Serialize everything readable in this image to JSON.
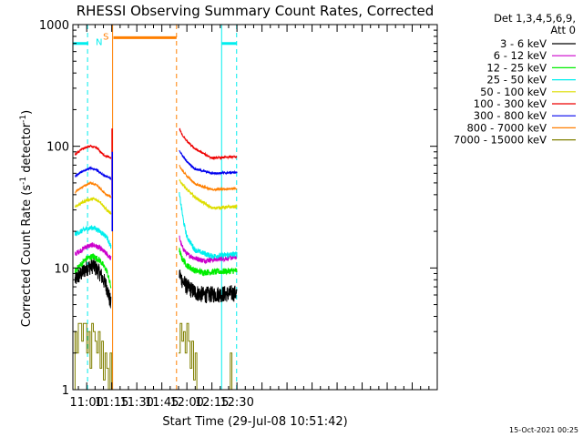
{
  "chart_data": {
    "type": "line",
    "title": "RHESSI Observing Summary Count Rates, Corrected",
    "xlabel": "Start Time (29-Jul-08 10:51:42)",
    "ylabel_main": "Corrected Count Rate (s",
    "ylabel_sup1": "-1",
    "ylabel_mid": " detector",
    "ylabel_sup2": "-1",
    "ylabel_end": ")",
    "yscale": "log",
    "ylim": [
      1,
      1000
    ],
    "xlim_min": [
      651.7,
      870
    ],
    "y_ticks": [
      {
        "v": 1,
        "label": "1"
      },
      {
        "v": 10,
        "label": "10"
      },
      {
        "v": 100,
        "label": "100"
      },
      {
        "v": 1000,
        "label": "1000"
      }
    ],
    "x_ticks": [
      {
        "v": 660,
        "label": "11:00"
      },
      {
        "v": 675,
        "label": "11:15"
      },
      {
        "v": 690,
        "label": "11:30"
      },
      {
        "v": 705,
        "label": "11:45"
      },
      {
        "v": 720,
        "label": "12:00"
      },
      {
        "v": 735,
        "label": "12:15"
      },
      {
        "v": 750,
        "label": "12:30"
      }
    ],
    "legend": {
      "header1": "Det 1,3,4,5,6,9,",
      "header2": "Att 0",
      "position": "right"
    },
    "series": [
      {
        "name": "3 - 6 keV",
        "color": "#000000",
        "noise": 0.16,
        "seg1": [
          [
            653,
            8
          ],
          [
            660,
            10
          ],
          [
            664,
            10.5
          ],
          [
            668,
            9
          ],
          [
            672,
            7
          ],
          [
            674.5,
            5
          ]
        ],
        "seg2": [
          [
            715.5,
            9
          ],
          [
            717,
            8
          ],
          [
            720,
            7
          ],
          [
            725,
            6.3
          ],
          [
            730,
            6
          ],
          [
            750,
            6.2
          ]
        ]
      },
      {
        "name": "6 - 12 keV",
        "color": "#cc00cc",
        "noise": 0.05,
        "seg1": [
          [
            653,
            13
          ],
          [
            660,
            15
          ],
          [
            664,
            15.5
          ],
          [
            668,
            14.5
          ],
          [
            672,
            13
          ],
          [
            674.5,
            12
          ]
        ],
        "seg2": [
          [
            715.5,
            18
          ],
          [
            717,
            15
          ],
          [
            720,
            13
          ],
          [
            725,
            12
          ],
          [
            730,
            11.5
          ],
          [
            750,
            12.3
          ]
        ]
      },
      {
        "name": "12 - 25 keV",
        "color": "#00ee00",
        "noise": 0.06,
        "seg1": [
          [
            653,
            9.5
          ],
          [
            660,
            12
          ],
          [
            664,
            12.5
          ],
          [
            668,
            11.5
          ],
          [
            672,
            9.5
          ],
          [
            674.5,
            7
          ]
        ],
        "seg2": [
          [
            715.5,
            14
          ],
          [
            717,
            12
          ],
          [
            720,
            10.5
          ],
          [
            725,
            9.5
          ],
          [
            730,
            9.2
          ],
          [
            750,
            9.5
          ]
        ]
      },
      {
        "name": "25 - 50 keV",
        "color": "#00eeee",
        "noise": 0.05,
        "seg1": [
          [
            653,
            19
          ],
          [
            660,
            21
          ],
          [
            664,
            21.5
          ],
          [
            668,
            20
          ],
          [
            672,
            18
          ],
          [
            674.5,
            15
          ]
        ],
        "seg2": [
          [
            715.5,
            40
          ],
          [
            716.5,
            33
          ],
          [
            718,
            24
          ],
          [
            720,
            18
          ],
          [
            725,
            14
          ],
          [
            735,
            12.5
          ],
          [
            750,
            13
          ]
        ]
      },
      {
        "name": "50 - 100 keV",
        "color": "#dddd00",
        "noise": 0.03,
        "seg1": [
          [
            653,
            32
          ],
          [
            660,
            36
          ],
          [
            664,
            37
          ],
          [
            668,
            35
          ],
          [
            672,
            30
          ],
          [
            674.5,
            28
          ]
        ],
        "seg2": [
          [
            715.5,
            52
          ],
          [
            718,
            48
          ],
          [
            720,
            44
          ],
          [
            725,
            38
          ],
          [
            735,
            31
          ],
          [
            750,
            32
          ]
        ]
      },
      {
        "name": "100 - 300 keV",
        "color": "#ee0000",
        "noise": 0.02,
        "seg1": [
          [
            653,
            85
          ],
          [
            657,
            95
          ],
          [
            662,
            100
          ],
          [
            666,
            97
          ],
          [
            670,
            85
          ],
          [
            674.5,
            80
          ]
        ],
        "seg2": [
          [
            715.5,
            140
          ],
          [
            717,
            125
          ],
          [
            720,
            110
          ],
          [
            725,
            95
          ],
          [
            735,
            80
          ],
          [
            750,
            82
          ]
        ]
      },
      {
        "name": "300 - 800 keV",
        "color": "#0000ee",
        "noise": 0.02,
        "seg1": [
          [
            653,
            57
          ],
          [
            657,
            62
          ],
          [
            662,
            66
          ],
          [
            666,
            64
          ],
          [
            670,
            58
          ],
          [
            674.5,
            54
          ]
        ],
        "seg2": [
          [
            715.5,
            93
          ],
          [
            717,
            85
          ],
          [
            720,
            75
          ],
          [
            725,
            65
          ],
          [
            735,
            60
          ],
          [
            750,
            61
          ]
        ]
      },
      {
        "name": "800 - 7000 keV",
        "color": "#ff7f00",
        "noise": 0.02,
        "seg1": [
          [
            653,
            42
          ],
          [
            657,
            46
          ],
          [
            662,
            50
          ],
          [
            666,
            48
          ],
          [
            670,
            42
          ],
          [
            674.5,
            38
          ]
        ],
        "seg2": [
          [
            715.5,
            70
          ],
          [
            717,
            64
          ],
          [
            720,
            57
          ],
          [
            725,
            49
          ],
          [
            735,
            44
          ],
          [
            750,
            45
          ]
        ]
      },
      {
        "name": "7000 - 15000 keV",
        "color": "#808000",
        "noise": 0,
        "steps": true,
        "seg1": [
          [
            652,
            1
          ],
          [
            653,
            3
          ],
          [
            654,
            2
          ],
          [
            655,
            3.5
          ],
          [
            657,
            2.5
          ],
          [
            658,
            3.5
          ],
          [
            660,
            2
          ],
          [
            661,
            3
          ],
          [
            662,
            1.5
          ],
          [
            663,
            3.5
          ],
          [
            664,
            3
          ],
          [
            665,
            2.5
          ],
          [
            666,
            2
          ],
          [
            667,
            3
          ],
          [
            668,
            1.5
          ],
          [
            669,
            2.5
          ],
          [
            670,
            1.2
          ],
          [
            671,
            2
          ],
          [
            672,
            1.5
          ],
          [
            673,
            1
          ],
          [
            674,
            2
          ],
          [
            675,
            1
          ]
        ],
        "seg2": [
          [
            715,
            2
          ],
          [
            716,
            3.5
          ],
          [
            717,
            2.5
          ],
          [
            718,
            3
          ],
          [
            719,
            2
          ],
          [
            720,
            3.5
          ],
          [
            721,
            2.5
          ],
          [
            722,
            1.5
          ],
          [
            723,
            2.5
          ],
          [
            724,
            1.2
          ],
          [
            725,
            2
          ],
          [
            726,
            1
          ],
          [
            745,
            1
          ],
          [
            746,
            2
          ],
          [
            747,
            1
          ]
        ]
      }
    ],
    "markers": [
      {
        "type": "cyan_dashed",
        "x": 651.7
      },
      {
        "type": "cyan_dashed",
        "x": 660.5
      },
      {
        "type": "cyan_solid",
        "x": 740.8
      },
      {
        "type": "cyan_dashed",
        "x": 749.8
      },
      {
        "type": "orange_solid",
        "x": 675.5
      },
      {
        "type": "orange_dashed",
        "x": 713.8
      }
    ],
    "bars": [
      {
        "color": "#00eeee",
        "x0": 652,
        "x1": 661,
        "y": 700,
        "label": "N"
      },
      {
        "color": "#00eeee",
        "x0": 741,
        "x1": 749.8,
        "y": 700,
        "label": ""
      },
      {
        "color": "#ff7f00",
        "x0": 676,
        "x1": 713.8,
        "y": 780,
        "label": "S"
      }
    ]
  },
  "footer": {
    "timestamp": "15-Oct-2021 00:25"
  }
}
